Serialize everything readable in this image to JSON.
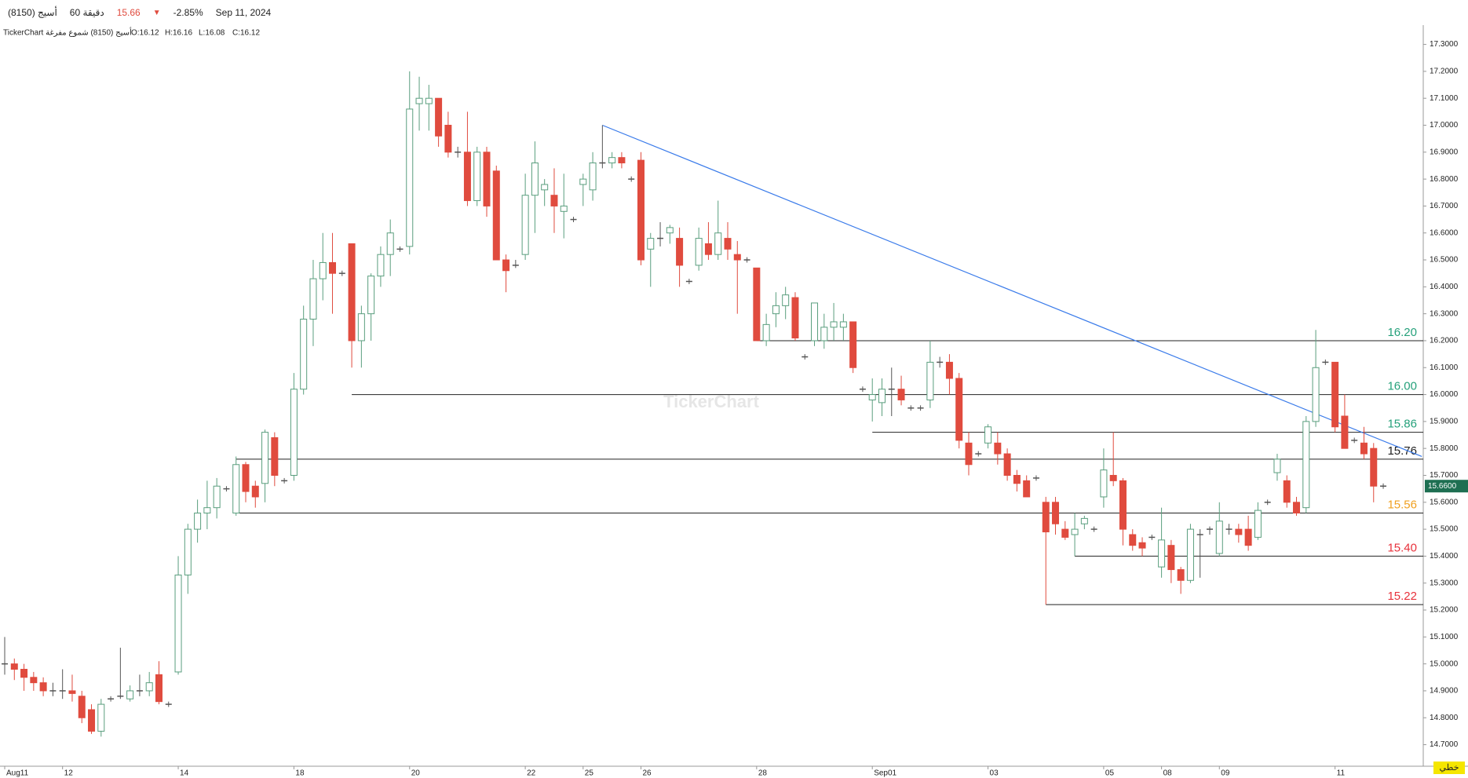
{
  "header": {
    "symbol": "أسيج (8150)",
    "interval": "60 دقيقة",
    "price": "15.66",
    "change": "-2.85%",
    "date": "Sep 11, 2024"
  },
  "legend_line": {
    "source": "TickerChart أسيج (8150) شموع مفرغة",
    "open": "O:16.12",
    "high": "H:16.16",
    "low": "L:16.08",
    "close": "C:16.12"
  },
  "watermark": "TickerChart",
  "button": "خطي",
  "chart_data": {
    "type": "candlestick",
    "ylim": [
      14.62,
      17.36
    ],
    "yticks": [
      {
        "value": 14.7,
        "label": "14.7000"
      },
      {
        "value": 14.8,
        "label": "14.8000"
      },
      {
        "value": 14.9,
        "label": "14.9000"
      },
      {
        "value": 15.0,
        "label": "15.0000"
      },
      {
        "value": 15.1,
        "label": "15.1000"
      },
      {
        "value": 15.2,
        "label": "15.2000"
      },
      {
        "value": 15.3,
        "label": "15.3000"
      },
      {
        "value": 15.4,
        "label": "15.4000"
      },
      {
        "value": 15.5,
        "label": "15.5000"
      },
      {
        "value": 15.6,
        "label": "15.6000"
      },
      {
        "value": 15.7,
        "label": "15.7000"
      },
      {
        "value": 15.8,
        "label": "15.8000"
      },
      {
        "value": 15.9,
        "label": "15.9000"
      },
      {
        "value": 16.0,
        "label": "16.0000"
      },
      {
        "value": 16.1,
        "label": "16.1000"
      },
      {
        "value": 16.2,
        "label": "16.2000"
      },
      {
        "value": 16.3,
        "label": "16.3000"
      },
      {
        "value": 16.4,
        "label": "16.4000"
      },
      {
        "value": 16.5,
        "label": "16.5000"
      },
      {
        "value": 16.6,
        "label": "16.6000"
      },
      {
        "value": 16.7,
        "label": "16.7000"
      },
      {
        "value": 16.8,
        "label": "16.8000"
      },
      {
        "value": 16.9,
        "label": "16.9000"
      },
      {
        "value": 17.0,
        "label": "17.0000"
      },
      {
        "value": 17.1,
        "label": "17.1000"
      },
      {
        "value": 17.2,
        "label": "17.2000"
      },
      {
        "value": 17.3,
        "label": "17.3000"
      }
    ],
    "up_color": "#5a9e7e",
    "down_color": "#e04b3e",
    "categories": [
      "Aug11",
      null,
      null,
      null,
      null,
      null,
      "12",
      null,
      null,
      null,
      null,
      null,
      null,
      null,
      null,
      null,
      null,
      null,
      "14",
      null,
      null,
      null,
      null,
      null,
      null,
      null,
      null,
      null,
      null,
      null,
      "18",
      null,
      null,
      null,
      null,
      null,
      null,
      null,
      null,
      null,
      null,
      null,
      "20",
      null,
      null,
      null,
      null,
      null,
      null,
      null,
      null,
      null,
      null,
      null,
      "22",
      null,
      null,
      null,
      null,
      null,
      "25",
      null,
      null,
      null,
      null,
      null,
      "26",
      null,
      null,
      null,
      null,
      null,
      null,
      null,
      null,
      null,
      null,
      null,
      "28",
      null,
      null,
      null,
      null,
      null,
      null,
      null,
      null,
      null,
      null,
      null,
      "Sep01",
      null,
      null,
      null,
      null,
      null,
      null,
      null,
      null,
      null,
      null,
      null,
      "03",
      null,
      null,
      null,
      null,
      null,
      null,
      null,
      null,
      null,
      null,
      null,
      "05",
      null,
      null,
      null,
      null,
      null,
      "08",
      null,
      null,
      null,
      null,
      null,
      "09",
      null,
      null,
      null,
      null,
      null,
      null,
      null,
      null,
      null,
      null,
      null,
      "11",
      null,
      null,
      null,
      null,
      null
    ],
    "candles": [
      [
        15.0,
        15.1,
        14.96,
        15.0
      ],
      [
        15.0,
        15.02,
        14.94,
        14.98
      ],
      [
        14.98,
        15.0,
        14.9,
        14.95
      ],
      [
        14.95,
        14.97,
        14.9,
        14.93
      ],
      [
        14.93,
        14.95,
        14.88,
        14.9
      ],
      [
        14.9,
        14.93,
        14.88,
        14.9
      ],
      [
        14.9,
        14.98,
        14.87,
        14.9
      ],
      [
        14.9,
        14.96,
        14.86,
        14.89
      ],
      [
        14.88,
        14.9,
        14.78,
        14.8
      ],
      [
        14.83,
        14.85,
        14.74,
        14.75
      ],
      [
        14.75,
        14.87,
        14.73,
        14.85
      ],
      [
        14.87,
        14.88,
        14.86,
        14.87
      ],
      [
        14.88,
        15.06,
        14.87,
        14.88
      ],
      [
        14.87,
        14.92,
        14.86,
        14.9
      ],
      [
        14.9,
        14.96,
        14.88,
        14.9
      ],
      [
        14.9,
        14.97,
        14.88,
        14.93
      ],
      [
        14.96,
        15.01,
        14.85,
        14.86
      ],
      [
        14.85,
        14.86,
        14.84,
        14.85
      ],
      [
        14.97,
        15.4,
        14.96,
        15.33
      ],
      [
        15.33,
        15.52,
        15.26,
        15.5
      ],
      [
        15.5,
        15.61,
        15.45,
        15.56
      ],
      [
        15.56,
        15.68,
        15.5,
        15.58
      ],
      [
        15.58,
        15.69,
        15.54,
        15.66
      ],
      [
        15.65,
        15.66,
        15.64,
        15.65
      ],
      [
        15.56,
        15.77,
        15.55,
        15.74
      ],
      [
        15.74,
        15.75,
        15.6,
        15.64
      ],
      [
        15.66,
        15.68,
        15.58,
        15.62
      ],
      [
        15.67,
        15.87,
        15.6,
        15.86
      ],
      [
        15.84,
        15.86,
        15.66,
        15.7
      ],
      [
        15.68,
        15.69,
        15.67,
        15.68
      ],
      [
        15.7,
        16.08,
        15.68,
        16.02
      ],
      [
        16.02,
        16.33,
        16.0,
        16.28
      ],
      [
        16.28,
        16.5,
        16.18,
        16.43
      ],
      [
        16.43,
        16.6,
        16.35,
        16.49
      ],
      [
        16.49,
        16.6,
        16.3,
        16.45
      ],
      [
        16.45,
        16.46,
        16.44,
        16.45
      ],
      [
        16.56,
        16.56,
        16.1,
        16.2
      ],
      [
        16.2,
        16.33,
        16.1,
        16.3
      ],
      [
        16.3,
        16.45,
        16.2,
        16.44
      ],
      [
        16.44,
        16.55,
        16.4,
        16.52
      ],
      [
        16.52,
        16.65,
        16.44,
        16.6
      ],
      [
        16.54,
        16.55,
        16.53,
        16.54
      ],
      [
        16.55,
        17.2,
        16.52,
        17.06
      ],
      [
        17.08,
        17.18,
        16.98,
        17.1
      ],
      [
        17.08,
        17.15,
        16.98,
        17.1
      ],
      [
        17.1,
        17.1,
        16.92,
        16.96
      ],
      [
        17.0,
        17.05,
        16.88,
        16.9
      ],
      [
        16.9,
        16.92,
        16.88,
        16.9
      ],
      [
        16.9,
        17.05,
        16.7,
        16.72
      ],
      [
        16.72,
        16.92,
        16.7,
        16.9
      ],
      [
        16.9,
        16.92,
        16.66,
        16.7
      ],
      [
        16.83,
        16.85,
        16.5,
        16.5
      ],
      [
        16.5,
        16.52,
        16.38,
        16.46
      ],
      [
        16.48,
        16.5,
        16.47,
        16.48
      ],
      [
        16.52,
        16.82,
        16.5,
        16.74
      ],
      [
        16.74,
        16.94,
        16.6,
        16.86
      ],
      [
        16.76,
        16.8,
        16.7,
        16.78
      ],
      [
        16.74,
        16.84,
        16.6,
        16.7
      ],
      [
        16.68,
        16.82,
        16.58,
        16.7
      ],
      [
        16.65,
        16.66,
        16.64,
        16.65
      ],
      [
        16.78,
        16.82,
        16.7,
        16.8
      ],
      [
        16.76,
        16.9,
        16.72,
        16.86
      ],
      [
        16.86,
        17.0,
        16.84,
        16.86
      ],
      [
        16.86,
        16.9,
        16.84,
        16.88
      ],
      [
        16.88,
        16.9,
        16.84,
        16.86
      ],
      [
        16.8,
        16.81,
        16.79,
        16.8
      ],
      [
        16.87,
        16.9,
        16.48,
        16.5
      ],
      [
        16.54,
        16.6,
        16.4,
        16.58
      ],
      [
        16.58,
        16.64,
        16.55,
        16.58
      ],
      [
        16.6,
        16.63,
        16.56,
        16.62
      ],
      [
        16.58,
        16.62,
        16.4,
        16.48
      ],
      [
        16.42,
        16.43,
        16.41,
        16.42
      ],
      [
        16.48,
        16.62,
        16.46,
        16.58
      ],
      [
        16.56,
        16.64,
        16.5,
        16.52
      ],
      [
        16.52,
        16.72,
        16.5,
        16.6
      ],
      [
        16.58,
        16.64,
        16.5,
        16.54
      ],
      [
        16.52,
        16.57,
        16.3,
        16.5
      ],
      [
        16.5,
        16.51,
        16.49,
        16.5
      ],
      [
        16.47,
        16.47,
        16.2,
        16.2
      ],
      [
        16.2,
        16.3,
        16.18,
        16.26
      ],
      [
        16.3,
        16.38,
        16.25,
        16.33
      ],
      [
        16.33,
        16.4,
        16.28,
        16.37
      ],
      [
        16.36,
        16.38,
        16.2,
        16.21
      ],
      [
        16.14,
        16.15,
        16.13,
        16.14
      ],
      [
        16.2,
        16.34,
        16.18,
        16.34
      ],
      [
        16.2,
        16.3,
        16.17,
        16.25
      ],
      [
        16.25,
        16.34,
        16.2,
        16.27
      ],
      [
        16.25,
        16.3,
        16.2,
        16.27
      ],
      [
        16.27,
        16.27,
        16.08,
        16.1
      ],
      [
        16.02,
        16.03,
        16.01,
        16.02
      ],
      [
        15.98,
        16.06,
        15.9,
        16.0
      ],
      [
        15.97,
        16.06,
        15.92,
        16.02
      ],
      [
        16.02,
        16.1,
        15.92,
        16.02
      ],
      [
        16.02,
        16.07,
        15.96,
        15.98
      ],
      [
        15.95,
        15.96,
        15.94,
        15.95
      ],
      [
        15.95,
        15.96,
        15.94,
        15.95
      ],
      [
        15.98,
        16.2,
        15.95,
        16.12
      ],
      [
        16.12,
        16.14,
        16.1,
        16.12
      ],
      [
        16.12,
        16.15,
        16.0,
        16.06
      ],
      [
        16.06,
        16.08,
        15.8,
        15.83
      ],
      [
        15.82,
        15.86,
        15.7,
        15.74
      ],
      [
        15.78,
        15.79,
        15.77,
        15.78
      ],
      [
        15.82,
        15.89,
        15.8,
        15.88
      ],
      [
        15.82,
        15.86,
        15.74,
        15.78
      ],
      [
        15.78,
        15.8,
        15.68,
        15.7
      ],
      [
        15.7,
        15.72,
        15.64,
        15.67
      ],
      [
        15.68,
        15.7,
        15.62,
        15.62
      ],
      [
        15.69,
        15.7,
        15.68,
        15.69
      ],
      [
        15.6,
        15.62,
        15.22,
        15.49
      ],
      [
        15.6,
        15.62,
        15.48,
        15.52
      ],
      [
        15.5,
        15.53,
        15.46,
        15.47
      ],
      [
        15.48,
        15.56,
        15.4,
        15.5
      ],
      [
        15.52,
        15.55,
        15.5,
        15.54
      ],
      [
        15.5,
        15.51,
        15.49,
        15.5
      ],
      [
        15.62,
        15.8,
        15.58,
        15.72
      ],
      [
        15.7,
        15.86,
        15.66,
        15.68
      ],
      [
        15.68,
        15.69,
        15.44,
        15.5
      ],
      [
        15.48,
        15.5,
        15.42,
        15.44
      ],
      [
        15.45,
        15.47,
        15.4,
        15.43
      ],
      [
        15.47,
        15.48,
        15.46,
        15.47
      ],
      [
        15.36,
        15.58,
        15.32,
        15.46
      ],
      [
        15.44,
        15.46,
        15.3,
        15.35
      ],
      [
        15.35,
        15.36,
        15.26,
        15.31
      ],
      [
        15.31,
        15.52,
        15.3,
        15.5
      ],
      [
        15.48,
        15.5,
        15.32,
        15.48
      ],
      [
        15.5,
        15.51,
        15.48,
        15.5
      ],
      [
        15.41,
        15.6,
        15.4,
        15.53
      ],
      [
        15.5,
        15.52,
        15.48,
        15.5
      ],
      [
        15.5,
        15.52,
        15.45,
        15.48
      ],
      [
        15.5,
        15.55,
        15.42,
        15.44
      ],
      [
        15.47,
        15.6,
        15.46,
        15.57
      ],
      [
        15.6,
        15.61,
        15.59,
        15.6
      ],
      [
        15.71,
        15.78,
        15.68,
        15.76
      ],
      [
        15.68,
        15.7,
        15.58,
        15.6
      ],
      [
        15.6,
        15.62,
        15.55,
        15.56
      ],
      [
        15.58,
        15.92,
        15.56,
        15.9
      ],
      [
        15.9,
        16.24,
        15.88,
        16.1
      ],
      [
        16.12,
        16.13,
        16.11,
        16.12
      ],
      [
        16.12,
        16.12,
        15.86,
        15.88
      ],
      [
        15.92,
        16.0,
        15.8,
        15.8
      ],
      [
        15.83,
        15.84,
        15.82,
        15.83
      ],
      [
        15.82,
        15.88,
        15.76,
        15.78
      ],
      [
        15.8,
        15.82,
        15.6,
        15.66
      ],
      [
        15.66,
        15.67,
        15.65,
        15.66
      ]
    ],
    "levels": [
      {
        "value": 16.2,
        "label": "16.20",
        "from": 78,
        "color": "#26a17b"
      },
      {
        "value": 16.0,
        "label": "16.00",
        "from": 36,
        "color": "#26a17b"
      },
      {
        "value": 15.86,
        "label": "15.86",
        "from": 90,
        "color": "#26a17b"
      },
      {
        "value": 15.76,
        "label": "15.76",
        "from": 24,
        "color": "#222222"
      },
      {
        "value": 15.56,
        "label": "15.56",
        "from": 24,
        "color": "#f0a020"
      },
      {
        "value": 15.4,
        "label": "15.40",
        "from": 111,
        "color": "#e8323c"
      },
      {
        "value": 15.22,
        "label": "15.22",
        "from": 108,
        "color": "#e8323c"
      }
    ],
    "trendline": {
      "from": {
        "index": 62,
        "value": 17.0
      },
      "to": {
        "index": 147,
        "value": 15.77
      },
      "color": "#3a7bea"
    },
    "last_price": {
      "value": 15.66,
      "label": "15.6600"
    }
  }
}
